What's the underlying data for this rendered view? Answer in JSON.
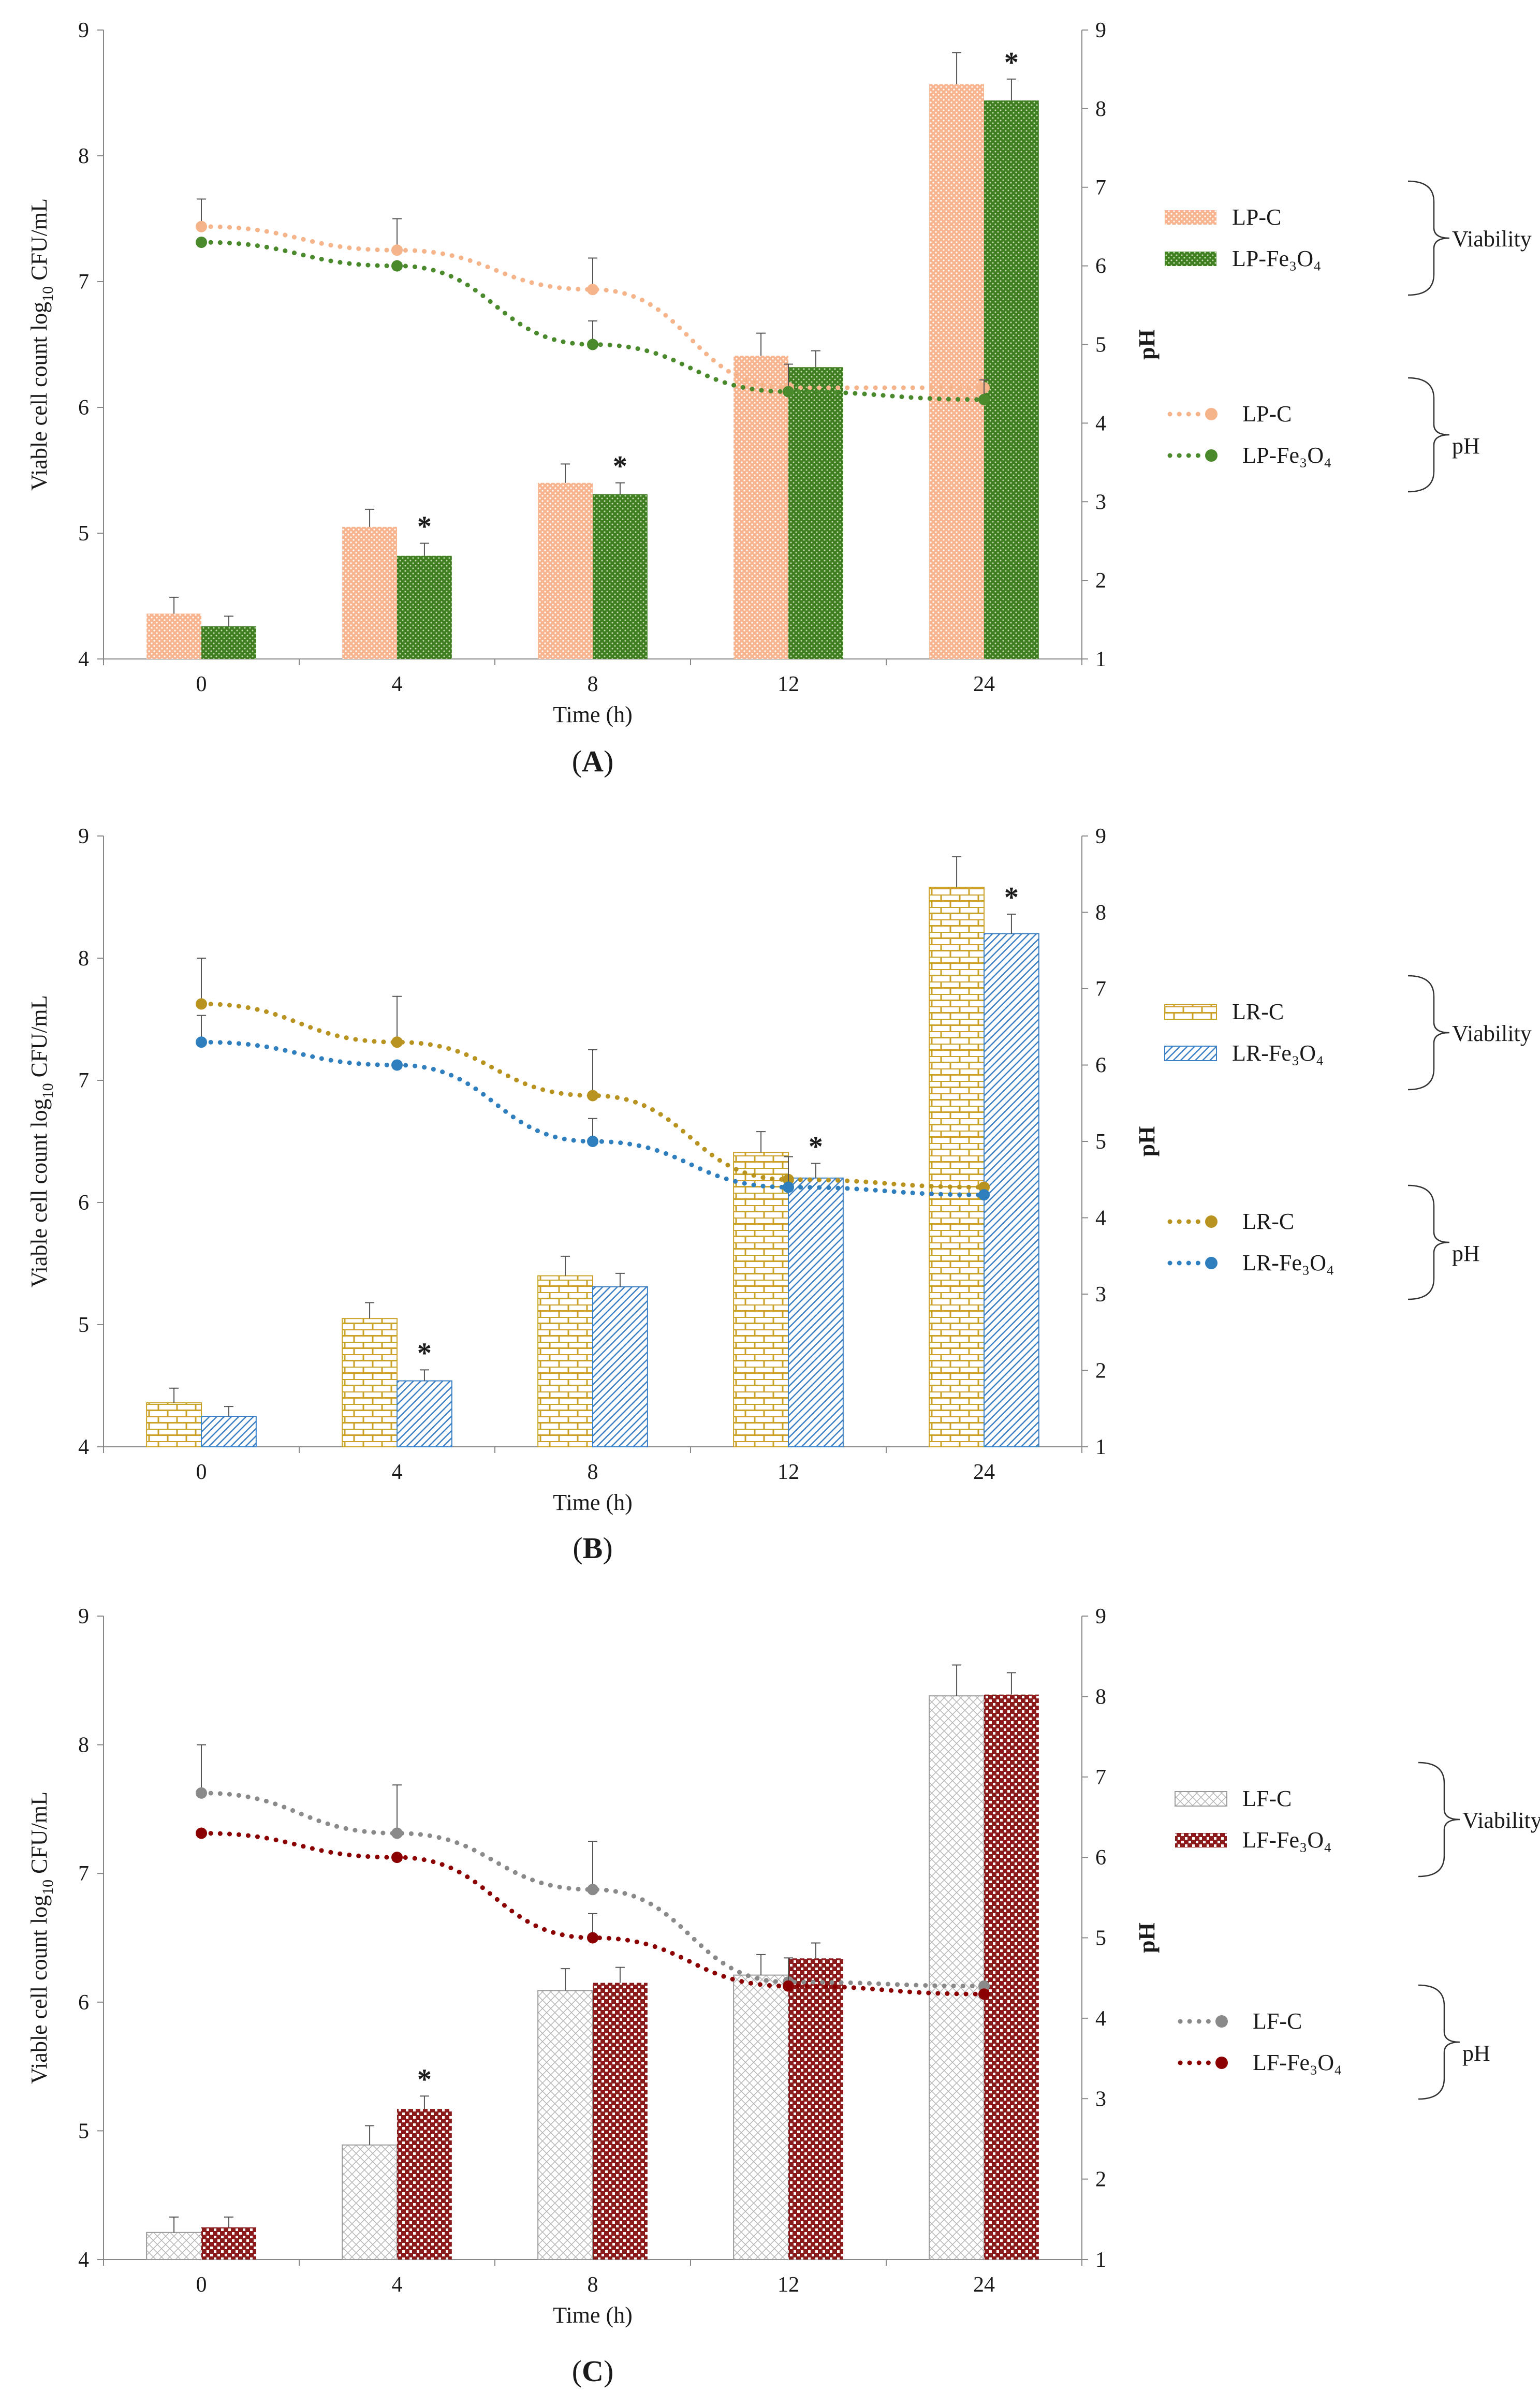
{
  "chart_data": [
    {
      "type": "bar",
      "panel_label": "(A)",
      "xlabel": "Time (h)",
      "ylabel": "Viable cell count log10 CFU/mL",
      "ylabel_main": "Viable cell count log",
      "ylabel_sub": "10",
      "ylabel_tail": " CFU/mL",
      "y2label": "pH",
      "categories": [
        "0",
        "4",
        "8",
        "12",
        "24"
      ],
      "ylim": [
        4,
        9
      ],
      "y2lim": [
        1,
        9
      ],
      "yticks": [
        "4",
        "5",
        "6",
        "7",
        "8",
        "9"
      ],
      "y2ticks": [
        "1",
        "2",
        "3",
        "4",
        "5",
        "6",
        "7",
        "8",
        "9"
      ],
      "viability_label": "Viability",
      "ph_label": "pH",
      "bar_series": [
        {
          "name": "LP-C",
          "values": [
            4.36,
            5.05,
            5.4,
            6.41,
            8.57
          ],
          "errors": [
            0.13,
            0.14,
            0.15,
            0.18,
            0.25
          ],
          "color": "#f8c0a0",
          "pattern": "dots-peach"
        },
        {
          "name": "LP-Fe₃O₄",
          "values": [
            4.26,
            4.82,
            5.31,
            6.32,
            8.44
          ],
          "errors": [
            0.08,
            0.1,
            0.09,
            0.13,
            0.17
          ],
          "color": "#4a8a2c",
          "pattern": "dots-green"
        }
      ],
      "line_series": [
        {
          "name": "LP-C",
          "values": [
            6.5,
            6.2,
            5.7,
            4.45,
            4.45
          ],
          "errors": [
            0.35,
            0.4,
            0.4,
            0.0,
            0.0
          ],
          "color": "#f5b48a"
        },
        {
          "name": "LP-Fe₃O₄",
          "values": [
            6.3,
            6.0,
            5.0,
            4.4,
            4.3
          ],
          "errors": [
            0.0,
            0.0,
            0.3,
            0.35,
            0.25
          ],
          "color": "#4a8a2c"
        }
      ],
      "significance_markers": [
        {
          "category": "4",
          "text": "*"
        },
        {
          "category": "8",
          "text": "*"
        },
        {
          "category": "24",
          "text": "*"
        }
      ]
    },
    {
      "type": "bar",
      "panel_label": "(B)",
      "xlabel": "Time (h)",
      "ylabel": "Viable cell count log10 CFU/mL",
      "ylabel_main": "Viable cell count log",
      "ylabel_sub": "10",
      "ylabel_tail": " CFU/mL",
      "y2label": "pH",
      "categories": [
        "0",
        "4",
        "8",
        "12",
        "24"
      ],
      "ylim": [
        4,
        9
      ],
      "y2lim": [
        1,
        9
      ],
      "yticks": [
        "4",
        "5",
        "6",
        "7",
        "8",
        "9"
      ],
      "y2ticks": [
        "1",
        "2",
        "3",
        "4",
        "5",
        "6",
        "7",
        "8",
        "9"
      ],
      "viability_label": "Viability",
      "ph_label": "pH",
      "bar_series": [
        {
          "name": "LR-C",
          "values": [
            4.36,
            5.05,
            5.4,
            6.41,
            8.58
          ],
          "errors": [
            0.12,
            0.13,
            0.16,
            0.17,
            0.25
          ],
          "color": "#c9a227",
          "pattern": "brick"
        },
        {
          "name": "LR-Fe₃O₄",
          "values": [
            4.25,
            4.54,
            5.31,
            6.2,
            8.2
          ],
          "errors": [
            0.08,
            0.09,
            0.11,
            0.12,
            0.16
          ],
          "color": "#3b7fc4",
          "pattern": "diag"
        }
      ],
      "line_series": [
        {
          "name": "LR-C",
          "values": [
            6.8,
            6.3,
            5.6,
            4.5,
            4.4
          ],
          "errors": [
            0.6,
            0.6,
            0.6,
            0.0,
            0.0
          ],
          "color": "#b8931f"
        },
        {
          "name": "LR-Fe₃O₄",
          "values": [
            6.3,
            6.0,
            5.0,
            4.4,
            4.3
          ],
          "errors": [
            0.35,
            0.0,
            0.3,
            0.4,
            0.0
          ],
          "color": "#2f7fbf"
        }
      ],
      "significance_markers": [
        {
          "category": "4",
          "text": "*"
        },
        {
          "category": "12",
          "text": "*"
        },
        {
          "category": "24",
          "text": "*"
        }
      ]
    },
    {
      "type": "bar",
      "panel_label": "(C)",
      "xlabel": "Time (h)",
      "ylabel": "Viable cell count log10 CFU/mL",
      "ylabel_main": "Viable cell count log",
      "ylabel_sub": "10",
      "ylabel_tail": " CFU/mL",
      "y2label": "pH",
      "categories": [
        "0",
        "4",
        "8",
        "12",
        "24"
      ],
      "ylim": [
        4,
        9
      ],
      "y2lim": [
        1,
        9
      ],
      "yticks": [
        "4",
        "5",
        "6",
        "7",
        "8",
        "9"
      ],
      "y2ticks": [
        "1",
        "2",
        "3",
        "4",
        "5",
        "6",
        "7",
        "8",
        "9"
      ],
      "viability_label": "Viability",
      "ph_label": "pH",
      "bar_series": [
        {
          "name": "LF-C",
          "values": [
            4.21,
            4.89,
            6.09,
            6.21,
            8.38
          ],
          "errors": [
            0.12,
            0.15,
            0.17,
            0.16,
            0.24
          ],
          "color": "#a8a8a8",
          "pattern": "cross"
        },
        {
          "name": "LF-Fe₃O₄",
          "values": [
            4.25,
            5.17,
            6.15,
            6.34,
            8.39
          ],
          "errors": [
            0.08,
            0.1,
            0.12,
            0.12,
            0.17
          ],
          "color": "#8b1a1a",
          "pattern": "checker"
        }
      ],
      "line_series": [
        {
          "name": "LF-C",
          "values": [
            6.8,
            6.3,
            5.6,
            4.45,
            4.4
          ],
          "errors": [
            0.6,
            0.6,
            0.6,
            0.0,
            0.0
          ],
          "color": "#8a8a8a"
        },
        {
          "name": "LF-Fe₃O₄",
          "values": [
            6.3,
            6.0,
            5.0,
            4.4,
            4.3
          ],
          "errors": [
            0.0,
            0.0,
            0.3,
            0.35,
            0.0
          ],
          "color": "#8b0000"
        }
      ],
      "significance_markers": [
        {
          "category": "4",
          "text": "*"
        }
      ]
    }
  ]
}
